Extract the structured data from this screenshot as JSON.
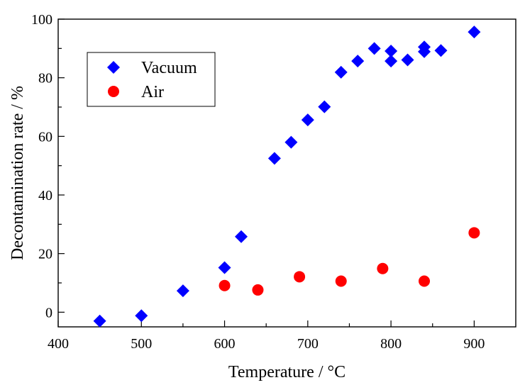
{
  "chart_data": {
    "type": "scatter",
    "title": "",
    "xlabel": "Temperature / °C",
    "ylabel": "Decontamination rate  / %",
    "xlim": [
      400,
      950
    ],
    "ylim": [
      -5,
      100
    ],
    "x_ticks": [
      400,
      500,
      600,
      700,
      800,
      900
    ],
    "y_ticks": [
      0,
      20,
      40,
      60,
      80,
      100
    ],
    "grid": false,
    "legend_placement": "top-left",
    "series": [
      {
        "name": "Vacuum",
        "marker": "diamond",
        "color": "#0000ff",
        "points": [
          [
            450,
            -3
          ],
          [
            500,
            -1.2
          ],
          [
            550,
            7.3
          ],
          [
            600,
            15.2
          ],
          [
            620,
            25.8
          ],
          [
            660,
            52.5
          ],
          [
            680,
            58
          ],
          [
            700,
            65.6
          ],
          [
            720,
            70.1
          ],
          [
            740,
            81.9
          ],
          [
            760,
            85.7
          ],
          [
            780,
            90
          ],
          [
            800,
            89.1
          ],
          [
            800,
            85.7
          ],
          [
            820,
            86.1
          ],
          [
            840,
            90.5
          ],
          [
            840,
            88.9
          ],
          [
            860,
            89.3
          ],
          [
            900,
            95.6
          ]
        ]
      },
      {
        "name": "Air",
        "marker": "circle",
        "color": "#ff0000",
        "points": [
          [
            600,
            9.1
          ],
          [
            640,
            7.6
          ],
          [
            690,
            12.1
          ],
          [
            740,
            10.6
          ],
          [
            790,
            14.9
          ],
          [
            840,
            10.6
          ],
          [
            900,
            27.1
          ]
        ]
      }
    ]
  }
}
